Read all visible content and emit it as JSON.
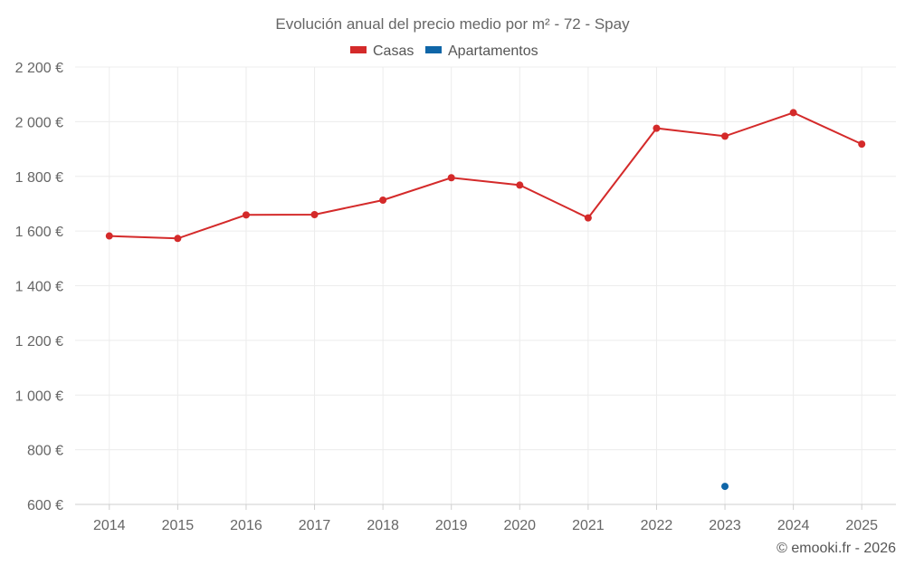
{
  "chart_data": {
    "type": "line",
    "title": "Evolución anual del precio medio por m² - 72 - Spay",
    "categories": [
      "2014",
      "2015",
      "2016",
      "2017",
      "2018",
      "2019",
      "2020",
      "2021",
      "2022",
      "2023",
      "2024",
      "2025"
    ],
    "y_ticks": [
      600,
      800,
      1000,
      1200,
      1400,
      1600,
      1800,
      2000,
      2200
    ],
    "y_tick_labels": [
      "600 €",
      "800 €",
      "1 000 €",
      "1 200 €",
      "1 400 €",
      "1 600 €",
      "1 800 €",
      "2 000 €",
      "2 200 €"
    ],
    "ylim": [
      600,
      2200
    ],
    "grid": true,
    "legend_position": "top-center",
    "series": [
      {
        "name": "Casas",
        "color": "#d42a2a",
        "values": [
          1582,
          1573,
          1659,
          1660,
          1713,
          1795,
          1768,
          1648,
          1976,
          1947,
          2033,
          1918
        ]
      },
      {
        "name": "Apartamentos",
        "color": "#0f66a8",
        "values": [
          null,
          null,
          null,
          null,
          null,
          null,
          null,
          null,
          null,
          666,
          null,
          null
        ]
      }
    ]
  },
  "credit": "© emooki.fr - 2026"
}
